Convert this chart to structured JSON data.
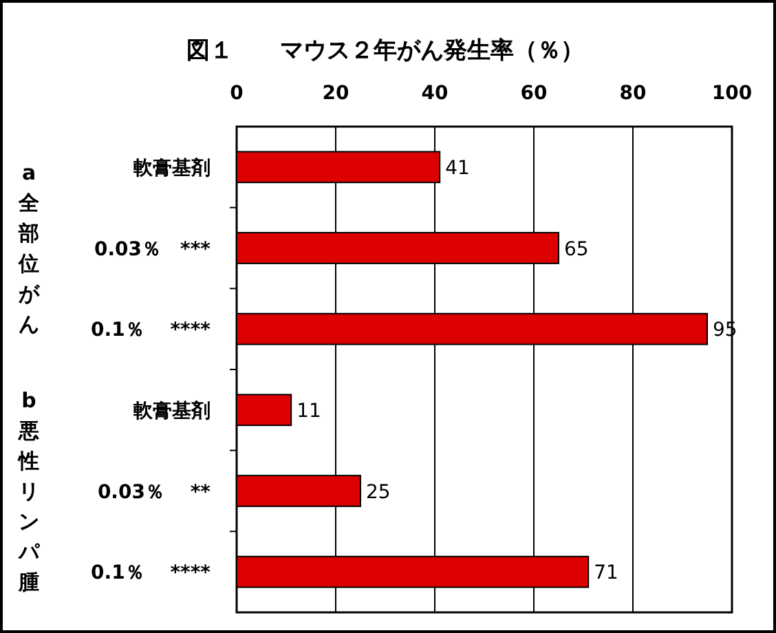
{
  "chart_data": {
    "type": "bar",
    "orientation": "horizontal",
    "title": "図１　　マウス２年がん発生率（％）",
    "categories": [
      "軟膏基剤",
      "0.03％　***",
      "0.1％　 ****",
      "軟膏基剤",
      "0.03％　 **",
      "0.1％　 ****"
    ],
    "values": [
      41,
      65,
      95,
      11,
      25,
      71
    ],
    "color": "#dd0000",
    "xlim": [
      0,
      100
    ],
    "xticks": [
      0,
      20,
      40,
      60,
      80,
      100
    ],
    "grid": "x",
    "data_labels": true,
    "annotations": [
      "a全部位がん",
      "b悪性リンパ腫"
    ]
  }
}
